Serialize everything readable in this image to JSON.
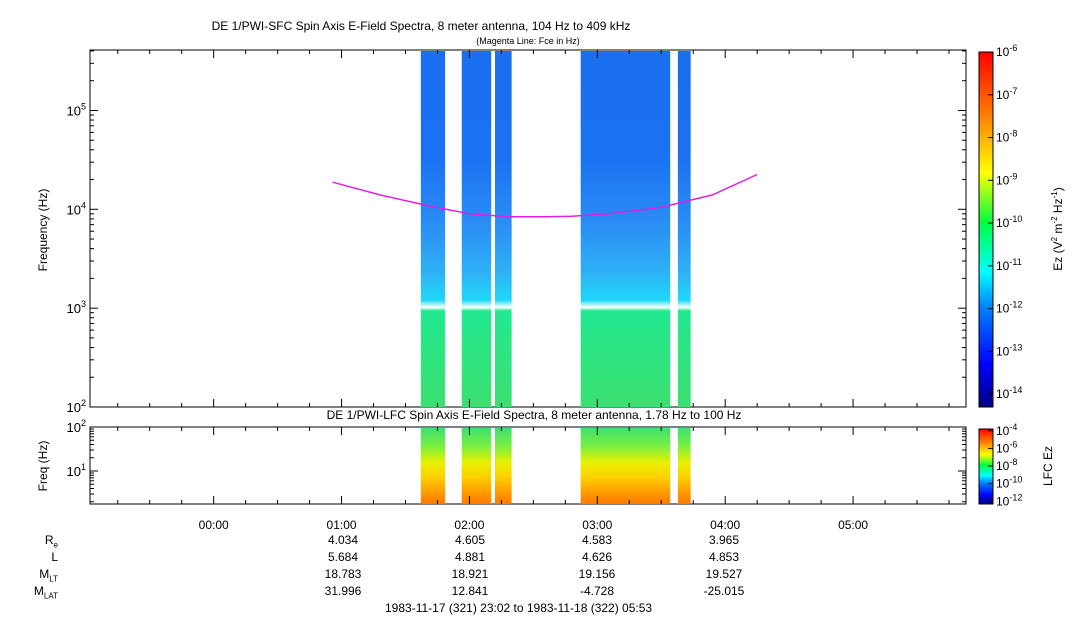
{
  "chart_data": [
    {
      "type": "heatmap",
      "title": "DE 1/PWI-SFC  Spin Axis E-Field Spectra, 8 meter antenna, 104 Hz to 409 kHz",
      "subtitle": "(Magenta Line: Fce in Hz)",
      "ylabel": "Frequency (Hz)",
      "yscale": "log",
      "ylim": [
        100,
        409000
      ],
      "ytick_labels": [
        {
          "base": "10",
          "exp": "2",
          "value": 100
        },
        {
          "base": "10",
          "exp": "3",
          "value": 1000
        },
        {
          "base": "10",
          "exp": "4",
          "value": 10000
        },
        {
          "base": "10",
          "exp": "5",
          "value": 100000
        }
      ],
      "x_range_hours": [
        23.033,
        29.883
      ],
      "data_segments_hours": [
        [
          25.62,
          25.81
        ],
        [
          25.94,
          26.17
        ],
        [
          26.2,
          26.33
        ],
        [
          26.87,
          27.57
        ],
        [
          27.63,
          27.73
        ]
      ],
      "fce_line": {
        "color": "#e020e0",
        "time_hours": [
          24.93,
          25.3,
          25.7,
          26.0,
          26.3,
          26.6,
          26.8,
          27.1,
          27.5,
          27.9,
          28.25
        ],
        "freq_hz": [
          18800,
          14000,
          10700,
          9000,
          8400,
          8400,
          8500,
          9000,
          10500,
          14000,
          22500
        ]
      },
      "colorbar": {
        "label_main": "Ez (V",
        "label_unit": "m",
        "label_tail": "Hz",
        "sup_1": "2",
        "sup_2": "-2",
        "sup_3": "-1",
        "close": ")",
        "tick_labels": [
          {
            "base": "10",
            "exp": "-6"
          },
          {
            "base": "10",
            "exp": "-7"
          },
          {
            "base": "10",
            "exp": "-8"
          },
          {
            "base": "10",
            "exp": "-9"
          },
          {
            "base": "10",
            "exp": "-10"
          },
          {
            "base": "10",
            "exp": "-11"
          },
          {
            "base": "10",
            "exp": "-12"
          },
          {
            "base": "10",
            "exp": "-13"
          },
          {
            "base": "10",
            "exp": "-14"
          }
        ],
        "log_range": [
          -14.3,
          -6
        ]
      }
    },
    {
      "type": "heatmap",
      "title": "DE 1/PWI-LFC  Spin Axis E-Field Spectra, 8 meter antenna, 1.78 Hz to 100 Hz",
      "ylabel": "Freq (Hz)",
      "yscale": "log",
      "ylim": [
        1.78,
        100
      ],
      "ytick_labels": [
        {
          "base": "10",
          "exp": "1",
          "value": 10
        },
        {
          "base": "10",
          "exp": "2",
          "value": 100
        }
      ],
      "colorbar": {
        "label": "LFC Ez",
        "tick_labels": [
          {
            "base": "10",
            "exp": "-4"
          },
          {
            "base": "10",
            "exp": "-6"
          },
          {
            "base": "10",
            "exp": "-8"
          },
          {
            "base": "10",
            "exp": "-10"
          },
          {
            "base": "10",
            "exp": "-12"
          }
        ],
        "log_range": [
          -12.3,
          -3.8
        ]
      }
    }
  ],
  "time_axis": {
    "tick_labels": [
      "00:00",
      "01:00",
      "02:00",
      "03:00",
      "04:00",
      "05:00"
    ],
    "tick_hours": [
      24,
      25,
      26,
      27,
      28,
      29
    ]
  },
  "ephemeris": {
    "rows": [
      {
        "label": "R",
        "sub": "e",
        "values": [
          "4.034",
          "4.605",
          "4.583",
          "3.965"
        ]
      },
      {
        "label": "L",
        "sub": "",
        "values": [
          "5.684",
          "4.881",
          "4.626",
          "4.853"
        ]
      },
      {
        "label": "M",
        "sub": "LT",
        "values": [
          "18.783",
          "18.921",
          "19.156",
          "19.527"
        ]
      },
      {
        "label": "M",
        "sub": "LAT",
        "values": [
          "31.996",
          "12.841",
          "-4.728",
          "-25.015"
        ]
      }
    ],
    "time_range": "1983-11-17 (321) 23:02 to 1983-11-18 (322) 05:53"
  }
}
